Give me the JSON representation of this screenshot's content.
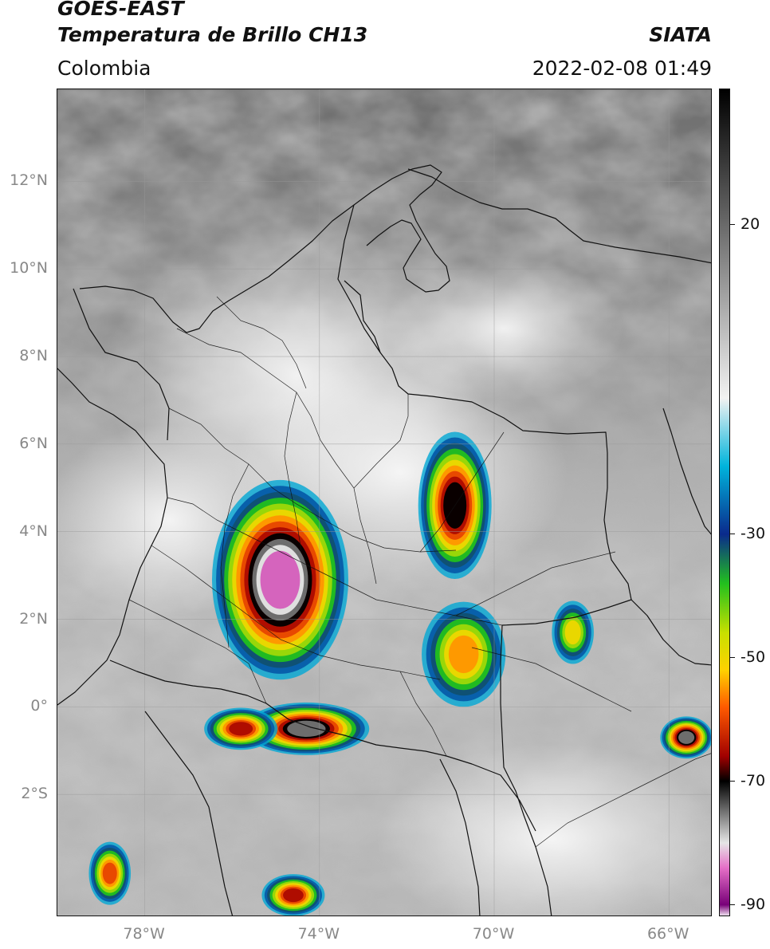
{
  "header": {
    "satellite": "GOES-EAST",
    "product": "Temperatura de Brillo CH13",
    "region": "Colombia",
    "agency": "SIATA",
    "timestamp": "2022-02-08 01:49"
  },
  "map": {
    "lon_range": [
      -80,
      -65
    ],
    "lat_range": [
      -4.8,
      14.1
    ],
    "lat_ticks": [
      {
        "value": 12,
        "label": "12°N"
      },
      {
        "value": 10,
        "label": "10°N"
      },
      {
        "value": 8,
        "label": "8°N"
      },
      {
        "value": 6,
        "label": "6°N"
      },
      {
        "value": 4,
        "label": "4°N"
      },
      {
        "value": 2,
        "label": "2°N"
      },
      {
        "value": 0,
        "label": "0°"
      },
      {
        "value": -2,
        "label": "2°S"
      }
    ],
    "lon_ticks": [
      {
        "value": -78,
        "label": "78°W"
      },
      {
        "value": -74,
        "label": "74°W"
      },
      {
        "value": -70,
        "label": "70°W"
      },
      {
        "value": -66,
        "label": "66°W"
      }
    ],
    "gridlines": true,
    "cloud_cells": [
      {
        "lon": -74.9,
        "lat": 2.9,
        "rx": 1.3,
        "ry": 1.9,
        "peak_c": -85
      },
      {
        "lon": -70.9,
        "lat": 4.6,
        "rx": 0.7,
        "ry": 1.4,
        "peak_c": -72
      },
      {
        "lon": -74.3,
        "lat": -0.5,
        "rx": 1.2,
        "ry": 0.5,
        "peak_c": -75
      },
      {
        "lon": -75.8,
        "lat": -0.5,
        "rx": 0.7,
        "ry": 0.4,
        "peak_c": -65
      },
      {
        "lon": -70.7,
        "lat": 1.2,
        "rx": 0.8,
        "ry": 1.0,
        "peak_c": -58
      },
      {
        "lon": -74.6,
        "lat": -4.3,
        "rx": 0.6,
        "ry": 0.4,
        "peak_c": -65
      },
      {
        "lon": -65.6,
        "lat": -0.7,
        "rx": 0.5,
        "ry": 0.4,
        "peak_c": -78
      },
      {
        "lon": -78.8,
        "lat": -3.8,
        "rx": 0.4,
        "ry": 0.6,
        "peak_c": -60
      },
      {
        "lon": -68.2,
        "lat": 1.7,
        "rx": 0.4,
        "ry": 0.6,
        "peak_c": -52
      }
    ]
  },
  "colorbar": {
    "units_hint": "°C",
    "ticks": [
      {
        "value": 20,
        "label": "20"
      },
      {
        "value": -30,
        "label": "-30"
      },
      {
        "value": -50,
        "label": "-50"
      },
      {
        "value": -70,
        "label": "-70"
      },
      {
        "value": -90,
        "label": "-90"
      }
    ],
    "top_value": 42,
    "bottom_value": -92,
    "stops": [
      {
        "value": 42,
        "color": "#000000"
      },
      {
        "value": 20,
        "color": "#6a6a6a"
      },
      {
        "value": -8,
        "color": "#f2f2f2"
      },
      {
        "value": -19,
        "color": "#00b4dc"
      },
      {
        "value": -30,
        "color": "#0a2a8c"
      },
      {
        "value": -38,
        "color": "#22c01e"
      },
      {
        "value": -46,
        "color": "#c8e000"
      },
      {
        "value": -52,
        "color": "#ffd200"
      },
      {
        "value": -58,
        "color": "#ff5a00"
      },
      {
        "value": -66,
        "color": "#a00000"
      },
      {
        "value": -70,
        "color": "#000000"
      },
      {
        "value": -80,
        "color": "#e6e6e6"
      },
      {
        "value": -84,
        "color": "#e670c8"
      },
      {
        "value": -90,
        "color": "#780078"
      },
      {
        "value": -92,
        "color": "#ffffff"
      }
    ]
  }
}
